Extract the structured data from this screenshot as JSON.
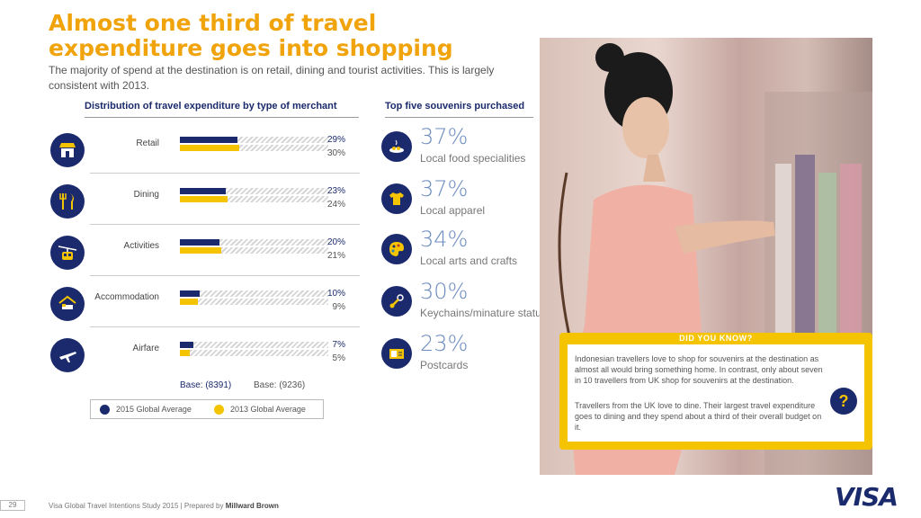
{
  "header": {
    "title_line1": "Almost one third of travel",
    "title_line2": "expenditure goes into shopping",
    "subtitle": "The majority of spend at the destination is on retail, dining and tourist activities. This is largely consistent with 2013."
  },
  "chart_data": [
    {
      "type": "bar",
      "title": "Distribution of travel expenditure by type of merchant",
      "categories": [
        "Retail",
        "Dining",
        "Activities",
        "Accommodation",
        "Airfare"
      ],
      "series": [
        {
          "name": "2015 Global Average",
          "values": [
            29,
            23,
            20,
            10,
            7
          ],
          "labels": [
            "29%",
            "23%",
            "20%",
            "10%",
            "7%"
          ],
          "color": "#1a2a6c"
        },
        {
          "name": "2013 Global Average",
          "values": [
            30,
            24,
            21,
            9,
            5
          ],
          "labels": [
            "30%",
            "24%",
            "21%",
            "9%",
            "5%"
          ],
          "color": "#f5c400"
        }
      ],
      "ylim": [
        0,
        100
      ],
      "orientation": "horizontal",
      "category_icons": [
        "shop-icon",
        "cutlery-icon",
        "cable-car-icon",
        "house-bed-icon",
        "airplane-icon"
      ],
      "base_2015": "Base: (8391)",
      "base_2013": "Base: (9236)"
    },
    {
      "type": "table",
      "title": "Top five souvenirs purchased",
      "rows": [
        {
          "pct": "37%",
          "name": "Local food specialities",
          "icon": "food-plate-icon"
        },
        {
          "pct": "37%",
          "name": "Local apparel",
          "icon": "tshirt-icon"
        },
        {
          "pct": "34%",
          "name": "Local arts and crafts",
          "icon": "palette-icon"
        },
        {
          "pct": "30%",
          "name": "Keychains/minature statues",
          "icon": "keychain-icon"
        },
        {
          "pct": "23%",
          "name": "Postcards",
          "icon": "postcard-icon"
        }
      ]
    }
  ],
  "legend": {
    "item1": "2015 Global Average",
    "item2": "2013 Global Average"
  },
  "did_you_know": {
    "heading": "DID YOU KNOW?",
    "para1": "Indonesian travellers love to shop for souvenirs at the destination as almost all would bring something home. In contrast, only about seven in 10 travellers from UK shop for souvenirs at the destination.",
    "para2": "Travellers from the UK love to dine. Their largest travel expenditure goes to dining and they spend about a third of their overall budget on it.",
    "icon": "?"
  },
  "footer": {
    "page": "29",
    "text": "Visa Global Travel Intentions Study 2015 | Prepared by",
    "company": "Millward Brown",
    "logo": "VISA"
  },
  "colors": {
    "accent": "#f0a30a",
    "navy": "#1a2a6c",
    "yellow": "#f5c400"
  }
}
